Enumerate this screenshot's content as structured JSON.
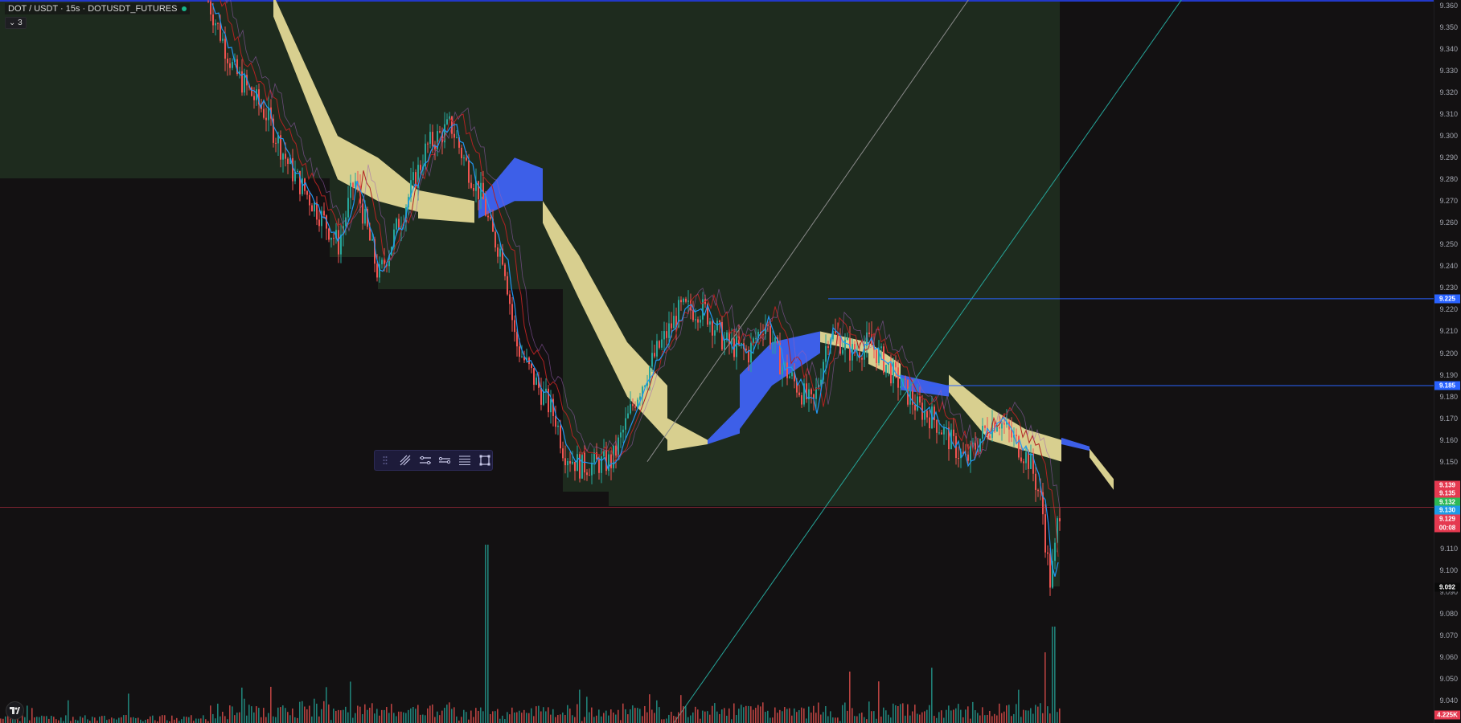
{
  "header": {
    "symbol_title": "DOT / USDT · 15s · DOTUSDT_FUTURES",
    "indicator_toggle_label": "⌄ 3"
  },
  "price_axis": {
    "ticks": [
      "9.360",
      "9.350",
      "9.340",
      "9.330",
      "9.320",
      "9.310",
      "9.300",
      "9.290",
      "9.280",
      "9.270",
      "9.260",
      "9.250",
      "9.240",
      "9.230",
      "9.220",
      "9.210",
      "9.200",
      "9.190",
      "9.180",
      "9.170",
      "9.160",
      "9.150",
      "9.140",
      "9.130",
      "9.120",
      "9.110",
      "9.100",
      "9.090",
      "9.080",
      "9.070",
      "9.060",
      "9.050",
      "9.040"
    ],
    "badges": [
      {
        "value": "9.225",
        "color": "#2962ff",
        "price": 9.225
      },
      {
        "value": "9.185",
        "color": "#2962ff",
        "price": 9.185
      },
      {
        "value": "9.139",
        "color": "#e53950",
        "price": 9.1392
      },
      {
        "value": "9.135",
        "color": "#e53950",
        "price": 9.1355
      },
      {
        "value": "9.132",
        "color": "#2db856",
        "price": 9.1315
      },
      {
        "value": "9.130",
        "color": "#1e9be6",
        "price": 9.1275
      },
      {
        "value": "9.129",
        "color": "#e53950",
        "price": 9.1235
      },
      {
        "value": "00:08",
        "color": "#e53950",
        "price": 9.1195
      },
      {
        "value": "9.092",
        "color": "#0a0a0a",
        "price": 9.092
      },
      {
        "value": "4.225K",
        "color": "#e53950",
        "price": 9.0335
      }
    ]
  },
  "horizontal_lines": [
    {
      "price": 9.225,
      "color": "#2962ff"
    },
    {
      "price": 9.185,
      "color": "#2962ff"
    },
    {
      "price": 9.129,
      "color": "#e53950"
    }
  ],
  "colors": {
    "background": "#131112",
    "position_zone": "#1e2b1e",
    "bull_candle": "#26a69a",
    "bear_candle": "#ef5350",
    "kumo_bull": "#d8cf8f",
    "kumo_bear": "#3d5fe8",
    "conversion_line": "#2196f3",
    "base_line": "#b22222",
    "trend_line": "#26a69a",
    "trend_line_grey": "#8a8a8a"
  },
  "icons": {
    "drawing_toolbar": [
      "drag-handle-icon",
      "trend-line-icon",
      "path-icon",
      "ray-icon",
      "parallel-channel-icon",
      "rectangle-icon"
    ],
    "logo": "tradingview-logo"
  }
}
